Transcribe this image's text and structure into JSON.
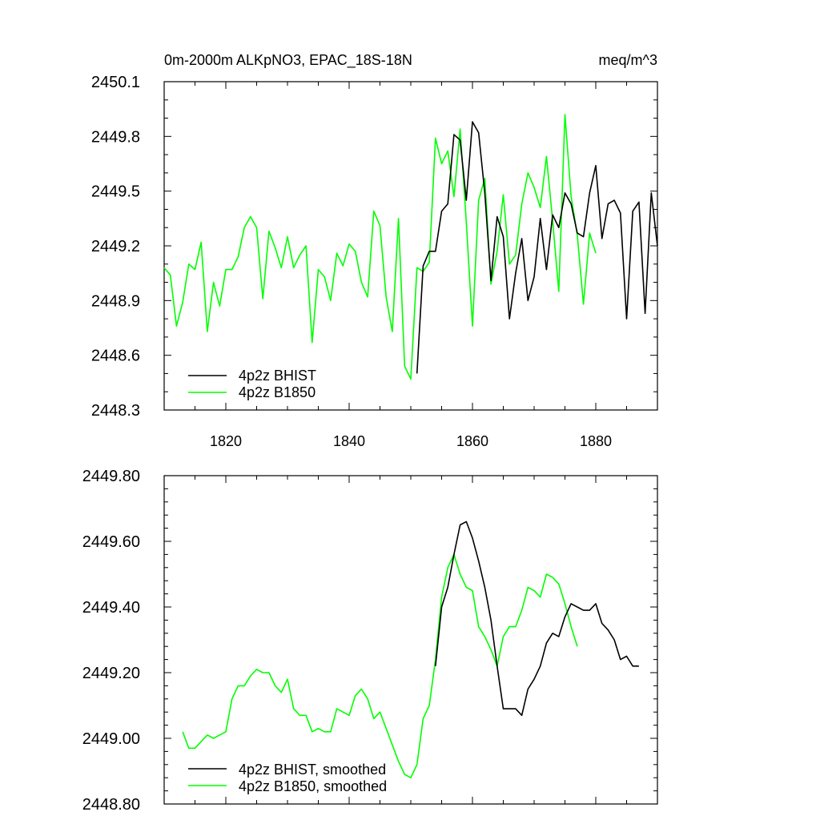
{
  "chart_data": [
    {
      "type": "line",
      "title": "0m-2000m ALKpNO3, EPAC_18S-18N",
      "units": "meq/m^3",
      "xlim": [
        1810,
        1890
      ],
      "ylim": [
        2448.3,
        2450.1
      ],
      "xticks": [
        1820,
        1840,
        1860,
        1880
      ],
      "xtick_labels": [
        "1820",
        "1840",
        "1860",
        "1880"
      ],
      "yticks": [
        2448.3,
        2448.6,
        2448.9,
        2449.2,
        2449.5,
        2449.8,
        2450.1
      ],
      "ytick_labels": [
        "2448.3",
        "2448.6",
        "2448.9",
        "2449.2",
        "2449.5",
        "2449.8",
        "2450.1"
      ],
      "legend_position": "bottom-left",
      "series": [
        {
          "name": "4p2z BHIST",
          "color": "#000000",
          "x": [
            1851,
            1852,
            1853,
            1854,
            1855,
            1856,
            1857,
            1858,
            1859,
            1860,
            1861,
            1862,
            1863,
            1864,
            1865,
            1866,
            1867,
            1868,
            1869,
            1870,
            1871,
            1872,
            1873,
            1874,
            1875,
            1876,
            1877,
            1878,
            1879,
            1880,
            1881,
            1882,
            1883,
            1884,
            1885,
            1886,
            1887,
            1888,
            1889,
            1890
          ],
          "y": [
            2448.5,
            2449.09,
            2449.17,
            2449.17,
            2449.39,
            2449.43,
            2449.81,
            2449.78,
            2449.45,
            2449.88,
            2449.82,
            2449.49,
            2449.01,
            2449.36,
            2449.25,
            2448.8,
            2449.05,
            2449.24,
            2448.9,
            2449.03,
            2449.35,
            2449.07,
            2449.37,
            2449.3,
            2449.49,
            2449.43,
            2449.27,
            2449.25,
            2449.49,
            2449.64,
            2449.24,
            2449.43,
            2449.45,
            2449.38,
            2448.8,
            2449.39,
            2449.44,
            2448.83,
            2449.49,
            2449.2
          ]
        },
        {
          "name": "4p2z B1850",
          "color": "#00ff00",
          "x": [
            1810,
            1811,
            1812,
            1813,
            1814,
            1815,
            1816,
            1817,
            1818,
            1819,
            1820,
            1821,
            1822,
            1823,
            1824,
            1825,
            1826,
            1827,
            1828,
            1829,
            1830,
            1831,
            1832,
            1833,
            1834,
            1835,
            1836,
            1837,
            1838,
            1839,
            1840,
            1841,
            1842,
            1843,
            1844,
            1845,
            1846,
            1847,
            1848,
            1849,
            1850,
            1851,
            1852,
            1853,
            1854,
            1855,
            1856,
            1857,
            1858,
            1859,
            1860,
            1861,
            1862,
            1863,
            1864,
            1865,
            1866,
            1867,
            1868,
            1869,
            1870,
            1871,
            1872,
            1873,
            1874,
            1875,
            1876,
            1877,
            1878,
            1879,
            1880
          ],
          "y": [
            2449.08,
            2449.04,
            2448.76,
            2448.89,
            2449.1,
            2449.07,
            2449.22,
            2448.73,
            2449.0,
            2448.87,
            2449.07,
            2449.07,
            2449.14,
            2449.3,
            2449.36,
            2449.3,
            2448.91,
            2449.28,
            2449.19,
            2449.08,
            2449.25,
            2449.08,
            2449.15,
            2449.2,
            2448.67,
            2449.07,
            2449.03,
            2448.9,
            2449.16,
            2449.09,
            2449.21,
            2449.17,
            2449.0,
            2448.92,
            2449.39,
            2449.31,
            2448.92,
            2448.73,
            2449.35,
            2448.54,
            2448.47,
            2449.08,
            2449.06,
            2449.11,
            2449.79,
            2449.65,
            2449.72,
            2449.47,
            2449.84,
            2449.33,
            2448.76,
            2449.45,
            2449.57,
            2448.99,
            2449.17,
            2449.48,
            2449.1,
            2449.15,
            2449.43,
            2449.6,
            2449.52,
            2449.41,
            2449.69,
            2449.34,
            2448.95,
            2449.92,
            2449.47,
            2449.26,
            2448.88,
            2449.27,
            2449.16
          ]
        }
      ]
    },
    {
      "type": "line",
      "xlim": [
        1810,
        1890
      ],
      "ylim": [
        2448.8,
        2449.8
      ],
      "xticks": [
        1820,
        1840,
        1860,
        1880
      ],
      "yticks": [
        2448.8,
        2449.0,
        2449.2,
        2449.4,
        2449.6,
        2449.8
      ],
      "ytick_labels": [
        "2448.80",
        "2449.00",
        "2449.20",
        "2449.40",
        "2449.60",
        "2449.80"
      ],
      "legend_position": "bottom-left",
      "series": [
        {
          "name": "4p2z BHIST, smoothed",
          "color": "#000000",
          "x": [
            1854,
            1855,
            1856,
            1857,
            1858,
            1859,
            1860,
            1861,
            1862,
            1863,
            1864,
            1865,
            1866,
            1867,
            1868,
            1869,
            1870,
            1871,
            1872,
            1873,
            1874,
            1875,
            1876,
            1877,
            1878,
            1879,
            1880,
            1881,
            1882,
            1883,
            1884,
            1885,
            1886,
            1887
          ],
          "y": [
            2449.22,
            2449.4,
            2449.46,
            2449.56,
            2449.65,
            2449.66,
            2449.61,
            2449.54,
            2449.46,
            2449.36,
            2449.22,
            2449.09,
            2449.09,
            2449.09,
            2449.07,
            2449.15,
            2449.18,
            2449.22,
            2449.29,
            2449.32,
            2449.31,
            2449.37,
            2449.41,
            2449.4,
            2449.39,
            2449.39,
            2449.41,
            2449.35,
            2449.33,
            2449.3,
            2449.24,
            2449.25,
            2449.22,
            2449.22
          ]
        },
        {
          "name": "4p2z B1850, smoothed",
          "color": "#00ff00",
          "x": [
            1813,
            1814,
            1815,
            1816,
            1817,
            1818,
            1819,
            1820,
            1821,
            1822,
            1823,
            1824,
            1825,
            1826,
            1827,
            1828,
            1829,
            1830,
            1831,
            1832,
            1833,
            1834,
            1835,
            1836,
            1837,
            1838,
            1839,
            1840,
            1841,
            1842,
            1843,
            1844,
            1845,
            1846,
            1847,
            1848,
            1849,
            1850,
            1851,
            1852,
            1853,
            1854,
            1855,
            1856,
            1857,
            1858,
            1859,
            1860,
            1861,
            1862,
            1863,
            1864,
            1865,
            1866,
            1867,
            1868,
            1869,
            1870,
            1871,
            1872,
            1873,
            1874,
            1875,
            1876,
            1877
          ],
          "y": [
            2449.02,
            2448.97,
            2448.97,
            2448.99,
            2449.01,
            2449.0,
            2449.01,
            2449.02,
            2449.12,
            2449.16,
            2449.16,
            2449.19,
            2449.21,
            2449.2,
            2449.2,
            2449.16,
            2449.14,
            2449.18,
            2449.09,
            2449.07,
            2449.07,
            2449.02,
            2449.03,
            2449.02,
            2449.02,
            2449.09,
            2449.08,
            2449.07,
            2449.13,
            2449.15,
            2449.12,
            2449.06,
            2449.08,
            2449.03,
            2448.98,
            2448.93,
            2448.89,
            2448.88,
            2448.92,
            2449.06,
            2449.1,
            2449.24,
            2449.43,
            2449.52,
            2449.56,
            2449.5,
            2449.46,
            2449.45,
            2449.34,
            2449.31,
            2449.27,
            2449.22,
            2449.31,
            2449.34,
            2449.34,
            2449.39,
            2449.46,
            2449.45,
            2449.43,
            2449.5,
            2449.49,
            2449.47,
            2449.41,
            2449.34,
            2449.28
          ]
        }
      ]
    }
  ]
}
